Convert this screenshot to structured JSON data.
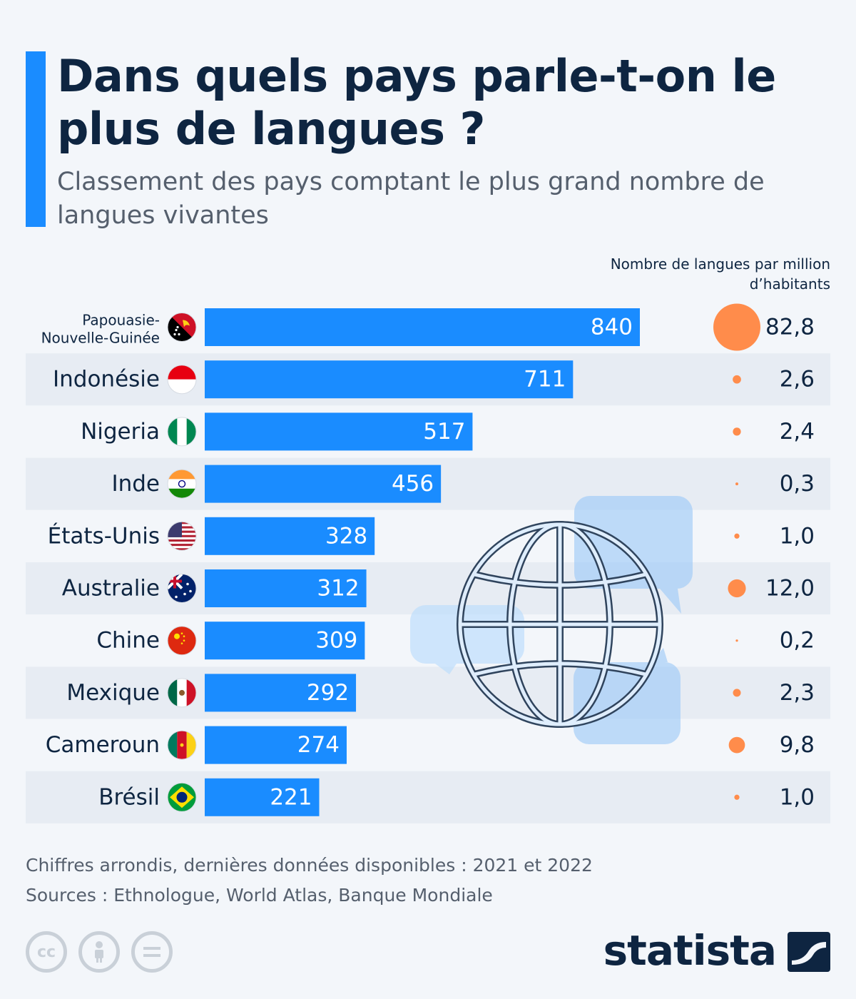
{
  "header": {
    "title": "Dans quels pays parle-t-on le plus de langues ?",
    "subtitle": "Classement des pays comptant le plus grand nombre de langues vivantes",
    "dot_column_header": "Nombre de langues par million d’habitants"
  },
  "colors": {
    "bar": "#1a8cff",
    "dot": "#ff8c4b",
    "text": "#0e2541",
    "stripe": "#e7ecf3"
  },
  "chart_data": {
    "type": "bar",
    "orientation": "horizontal",
    "categories": [
      "Papouasie-Nouvelle-Guinée",
      "Indonésie",
      "Nigeria",
      "Inde",
      "États-Unis",
      "Australie",
      "Chine",
      "Mexique",
      "Cameroun",
      "Brésil"
    ],
    "series": [
      {
        "values": [
          840,
          711,
          517,
          456,
          328,
          312,
          309,
          292,
          274,
          221
        ]
      },
      {
        "name": "Nombre de langues par million d’habitants",
        "values": [
          82.8,
          2.6,
          2.4,
          0.3,
          1.0,
          12.0,
          0.2,
          2.3,
          9.8,
          1.0
        ]
      }
    ],
    "value_labels": [
      "840",
      "711",
      "517",
      "456",
      "328",
      "312",
      "309",
      "292",
      "274",
      "221"
    ],
    "secondary_labels": [
      "82,8",
      "2,6",
      "2,4",
      "0,3",
      "1,0",
      "12,0",
      "0,2",
      "2,3",
      "9,8",
      "1,0"
    ],
    "flag_icons": [
      "papua-new-guinea-flag-icon",
      "indonesia-flag-icon",
      "nigeria-flag-icon",
      "india-flag-icon",
      "usa-flag-icon",
      "australia-flag-icon",
      "china-flag-icon",
      "mexico-flag-icon",
      "cameroon-flag-icon",
      "brazil-flag-icon"
    ],
    "legend": "none",
    "grid": false
  },
  "illustration": {
    "icon": "globe-speech-bubbles-icon"
  },
  "footer": {
    "note": "Chiffres arrondis, dernières données disponibles : 2021 et 2022",
    "source": "Sources : Ethnologue, World Atlas, Banque Mondiale",
    "license_icons": [
      "cc-icon",
      "attribution-icon",
      "no-derivatives-icon"
    ],
    "brand": "statista"
  }
}
